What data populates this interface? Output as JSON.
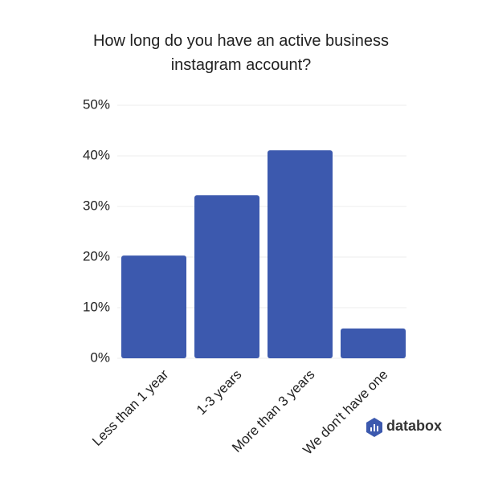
{
  "chart_data": {
    "type": "bar",
    "title": "How long do you have an active business instagram account?",
    "categories": [
      "Less than 1 year",
      "1-3 years",
      "More than 3 years",
      "We don't have one"
    ],
    "values": [
      20.3,
      32.2,
      41.1,
      5.9
    ],
    "color": "#3c59ae",
    "ylim": [
      0,
      50
    ],
    "yticks": [
      {
        "value": 0,
        "label": "0%"
      },
      {
        "value": 10,
        "label": "10%"
      },
      {
        "value": 20,
        "label": "20%"
      },
      {
        "value": 30,
        "label": "30%"
      },
      {
        "value": 40,
        "label": "40%"
      },
      {
        "value": 50,
        "label": "50%"
      }
    ],
    "grid": true
  },
  "brand": "databox"
}
